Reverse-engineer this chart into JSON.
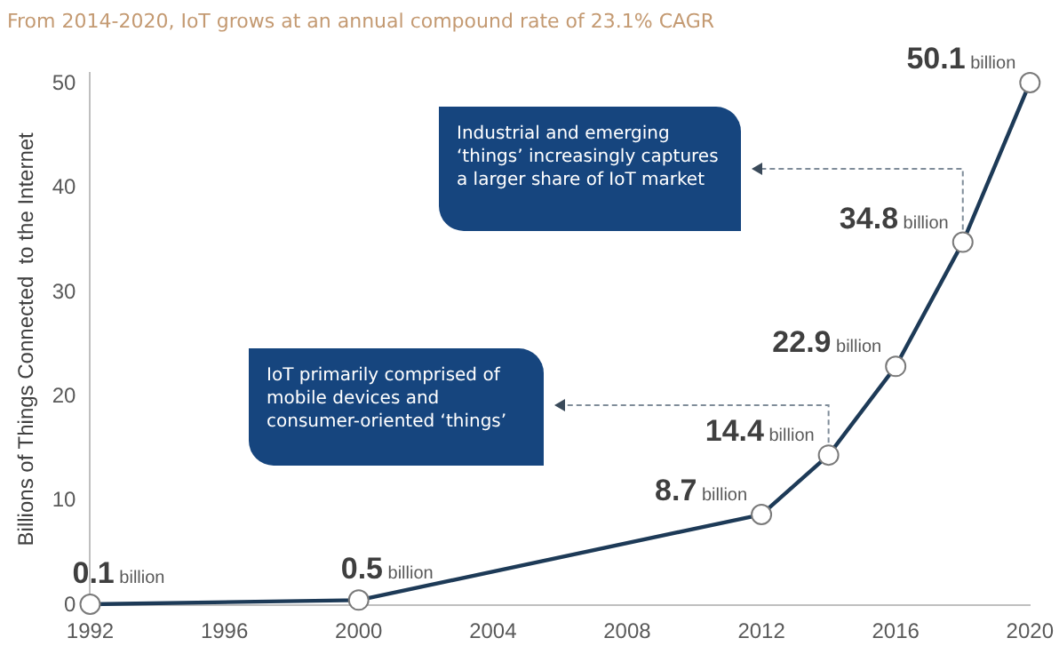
{
  "chart_data": {
    "type": "line",
    "title": "From 2014-2020, IoT grows at an annual compound rate of 23.1% CAGR",
    "ylabel": "Billions of Things Connected  to the Internet",
    "x": [
      1992,
      2000,
      2012,
      2014,
      2016,
      2018,
      2020
    ],
    "series": [
      {
        "color": "#1d3a57",
        "values": [
          0.1,
          0.5,
          8.7,
          14.4,
          22.9,
          34.8,
          50.1
        ],
        "value_labels": [
          "0.1 billion",
          "0.5 billion",
          "8.7 billion",
          "14.4 billion",
          "22.9 billion",
          "34.8 billion",
          "50.1 billion"
        ]
      }
    ],
    "xlim": [
      1992,
      2020
    ],
    "xticks": [
      1992,
      1996,
      2000,
      2004,
      2008,
      2012,
      2016,
      2020
    ],
    "ylim": [
      0,
      51
    ],
    "yticks": [
      0,
      10,
      20,
      30,
      40,
      50
    ],
    "grid": false,
    "legend": false,
    "marker": "circle",
    "line_style": "solid",
    "annotations": [
      "Industrial and emerging ‘things’ increasingly captures a larger share of IoT market",
      "IoT primarily comprised of mobile devices and consumer-oriented ‘things’"
    ]
  }
}
